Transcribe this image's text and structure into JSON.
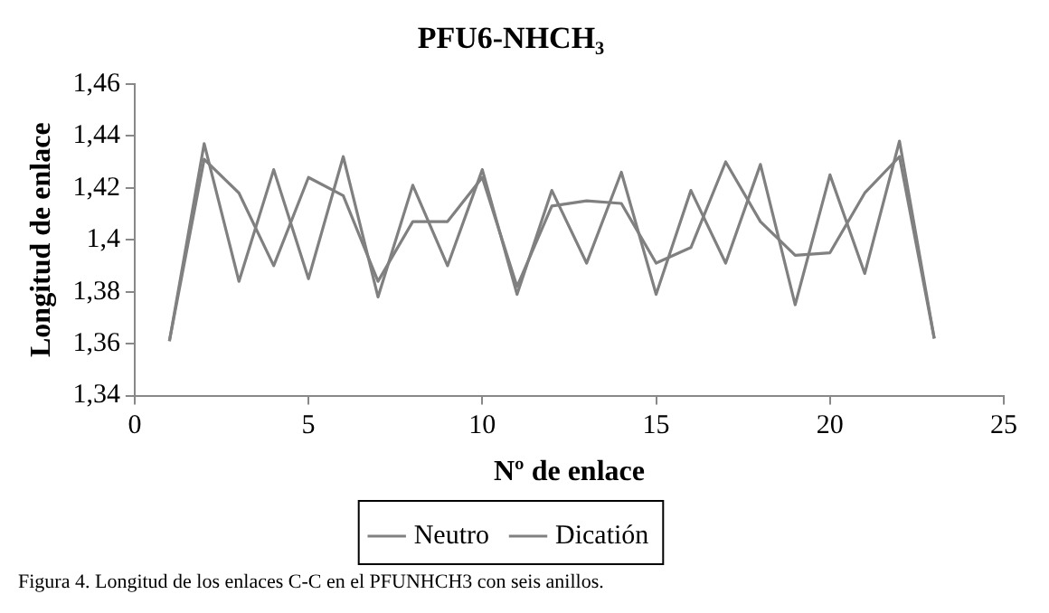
{
  "chart_data": {
    "type": "line",
    "title": "PFU6-NHCH₃",
    "xlabel": "Nº de enlace",
    "ylabel": "Longitud de enlace",
    "x": [
      1,
      2,
      3,
      4,
      5,
      6,
      7,
      8,
      9,
      10,
      11,
      12,
      13,
      14,
      15,
      16,
      17,
      18,
      19,
      20,
      21,
      22,
      23
    ],
    "series": [
      {
        "name": "Neutro",
        "color": "#808080",
        "values": [
          1.361,
          1.437,
          1.384,
          1.427,
          1.385,
          1.432,
          1.378,
          1.421,
          1.39,
          1.427,
          1.379,
          1.419,
          1.391,
          1.426,
          1.379,
          1.419,
          1.391,
          1.429,
          1.375,
          1.425,
          1.387,
          1.438,
          1.362
        ]
      },
      {
        "name": "Dicatión",
        "color": "#808080",
        "values": [
          1.361,
          1.431,
          1.418,
          1.39,
          1.424,
          1.417,
          1.384,
          1.407,
          1.407,
          1.424,
          1.382,
          1.413,
          1.415,
          1.414,
          1.391,
          1.397,
          1.43,
          1.407,
          1.394,
          1.395,
          1.418,
          1.432,
          1.362
        ]
      }
    ],
    "xlim": [
      0,
      25
    ],
    "xticks": [
      0,
      5,
      10,
      15,
      20,
      25
    ],
    "ylim": [
      1.34,
      1.46
    ],
    "yticks": [
      {
        "value": 1.34,
        "label": "1,34"
      },
      {
        "value": 1.36,
        "label": "1,36"
      },
      {
        "value": 1.38,
        "label": "1,38"
      },
      {
        "value": 1.4,
        "label": "1,4"
      },
      {
        "value": 1.42,
        "label": "1,42"
      },
      {
        "value": 1.44,
        "label": "1,44"
      },
      {
        "value": 1.46,
        "label": "1,46"
      }
    ],
    "grid": false,
    "legend": "bottom",
    "marker": "none",
    "line_style": "solid",
    "annotations": [
      "Figura 4. Longitud de los enlaces C-C en el PFUNHCH3 con seis anillos."
    ]
  }
}
